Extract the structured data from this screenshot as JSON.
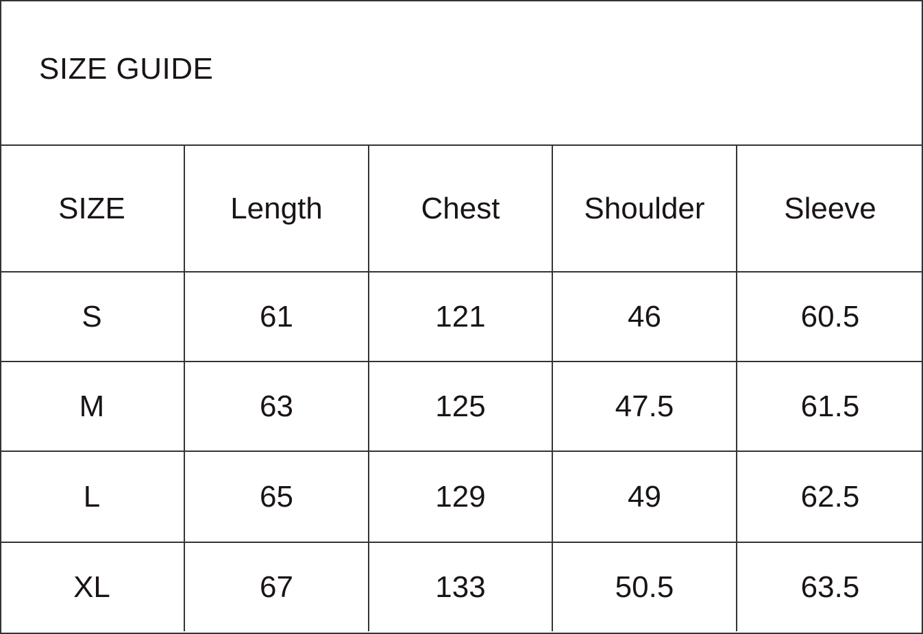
{
  "title": "SIZE GUIDE",
  "table": {
    "headers": [
      "SIZE",
      "Length",
      "Chest",
      "Shoulder",
      "Sleeve"
    ],
    "rows": [
      [
        "S",
        "61",
        "121",
        "46",
        "60.5"
      ],
      [
        "M",
        "63",
        "125",
        "47.5",
        "61.5"
      ],
      [
        "L",
        "65",
        "129",
        "49",
        "62.5"
      ],
      [
        "XL",
        "67",
        "133",
        "50.5",
        "63.5"
      ]
    ]
  }
}
